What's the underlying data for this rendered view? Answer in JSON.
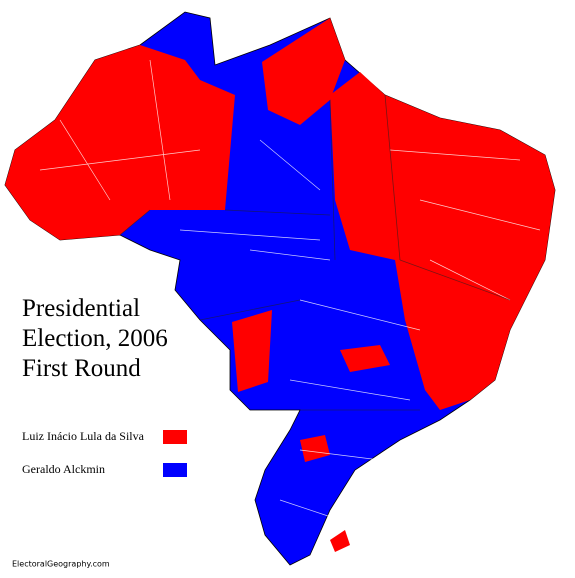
{
  "title_lines": [
    "Presidential",
    "Election, 2006",
    "First Round"
  ],
  "legend": [
    {
      "name": "Luiz Inácio Lula da Silva",
      "color": "#ff0000"
    },
    {
      "name": "Geraldo Alckmin",
      "color": "#0000ff"
    }
  ],
  "credit": "ElectoralGeography.com"
}
